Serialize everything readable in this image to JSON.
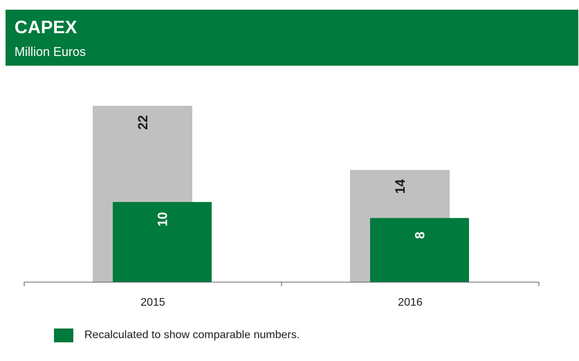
{
  "header": {
    "title": "CAPEX",
    "subtitle": "Million Euros"
  },
  "chart_data": {
    "type": "bar",
    "categories": [
      "2015",
      "2016"
    ],
    "series": [
      {
        "values": [
          22,
          14
        ],
        "color": "#c0c0c0"
      },
      {
        "values": [
          10,
          8
        ],
        "color": "#007a3d"
      }
    ],
    "ylim": [
      0,
      22
    ],
    "title": "CAPEX",
    "subtitle": "Million Euros",
    "legend_placement": "bottom-left",
    "grid": false
  },
  "legend": {
    "label": "Recalculated to show comparable numbers.",
    "color": "#007a3d"
  }
}
